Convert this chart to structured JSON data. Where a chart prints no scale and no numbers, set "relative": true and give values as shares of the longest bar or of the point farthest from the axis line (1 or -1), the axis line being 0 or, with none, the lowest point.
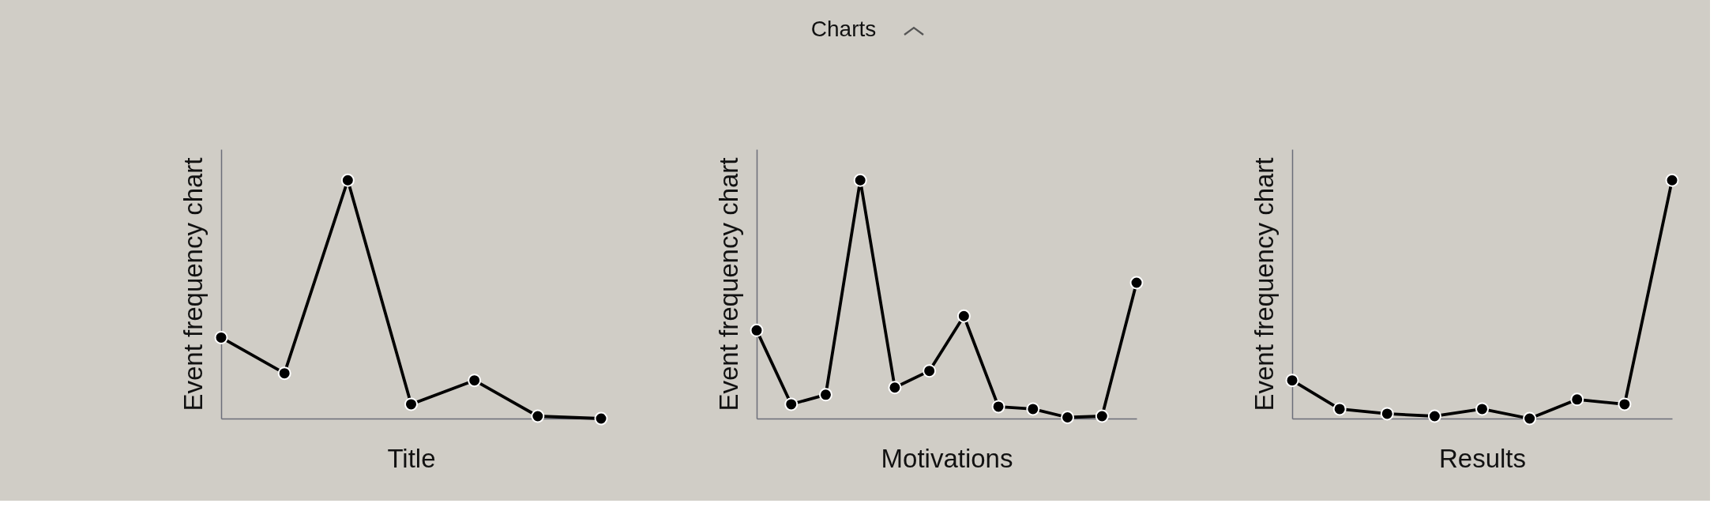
{
  "chart_data": [
    {
      "type": "other",
      "title": "Charts"
    },
    {
      "type": "line",
      "relative": true,
      "xlabel": "Title",
      "ylabel": "Event frequency chart",
      "marker": "circle",
      "categories": [
        null,
        null,
        null,
        null,
        null,
        null,
        null
      ],
      "series": [
        {
          "color": "#000000",
          "values": [
            0.34,
            0.19,
            1,
            0.06,
            0.16,
            0.01,
            0
          ]
        }
      ]
    },
    {
      "type": "line",
      "relative": true,
      "xlabel": "Motivations",
      "ylabel": "Event frequency chart",
      "marker": "circle",
      "categories": [
        null,
        null,
        null,
        null,
        null,
        null,
        null,
        null,
        null,
        null,
        null,
        null
      ],
      "series": [
        {
          "color": "#000000",
          "values": [
            0.37,
            0.06,
            0.1,
            1,
            0.13,
            0.2,
            0.43,
            0.05,
            0.04,
            0.005,
            0.01,
            0.57
          ]
        }
      ]
    },
    {
      "type": "line",
      "relative": true,
      "xlabel": "Results",
      "ylabel": "Event frequency chart",
      "marker": "circle",
      "categories": [
        null,
        null,
        null,
        null,
        null,
        null,
        null,
        null,
        null
      ],
      "series": [
        {
          "color": "#000000",
          "values": [
            0.16,
            0.04,
            0.02,
            0.01,
            0.04,
            0,
            0.08,
            0.06,
            1
          ]
        }
      ]
    }
  ]
}
